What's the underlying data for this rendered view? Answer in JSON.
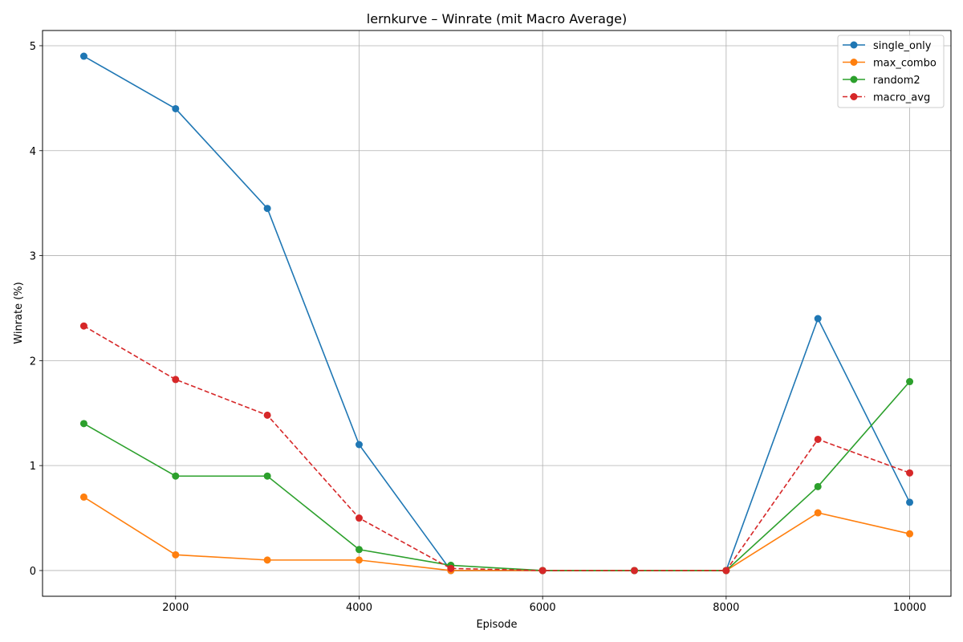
{
  "chart_data": {
    "type": "line",
    "title": "lernkurve – Winrate (mit Macro Average)",
    "xlabel": "Episode",
    "ylabel": "Winrate (%)",
    "xlim": [
      550,
      10450
    ],
    "ylim": [
      -0.245,
      5.145
    ],
    "xticks": [
      2000,
      4000,
      6000,
      8000,
      10000
    ],
    "yticks": [
      0,
      1,
      2,
      3,
      4,
      5
    ],
    "grid": true,
    "legend_position": "top-right",
    "x": [
      1000,
      2000,
      3000,
      4000,
      5000,
      6000,
      7000,
      8000,
      9000,
      10000
    ],
    "series": [
      {
        "name": "single_only",
        "color": "#1f77b4",
        "dashed": false,
        "values": [
          4.9,
          4.4,
          3.45,
          1.2,
          0.0,
          0.0,
          0.0,
          0.0,
          2.4,
          0.65
        ]
      },
      {
        "name": "max_combo",
        "color": "#ff7f0e",
        "dashed": false,
        "values": [
          0.7,
          0.15,
          0.1,
          0.1,
          0.0,
          0.0,
          0.0,
          0.0,
          0.55,
          0.35
        ]
      },
      {
        "name": "random2",
        "color": "#2ca02c",
        "dashed": false,
        "values": [
          1.4,
          0.9,
          0.9,
          0.2,
          0.05,
          0.0,
          0.0,
          0.0,
          0.8,
          1.8
        ]
      },
      {
        "name": "macro_avg",
        "color": "#d62728",
        "dashed": true,
        "values": [
          2.33,
          1.82,
          1.48,
          0.5,
          0.02,
          0.0,
          0.0,
          0.0,
          1.25,
          0.93
        ]
      }
    ]
  }
}
